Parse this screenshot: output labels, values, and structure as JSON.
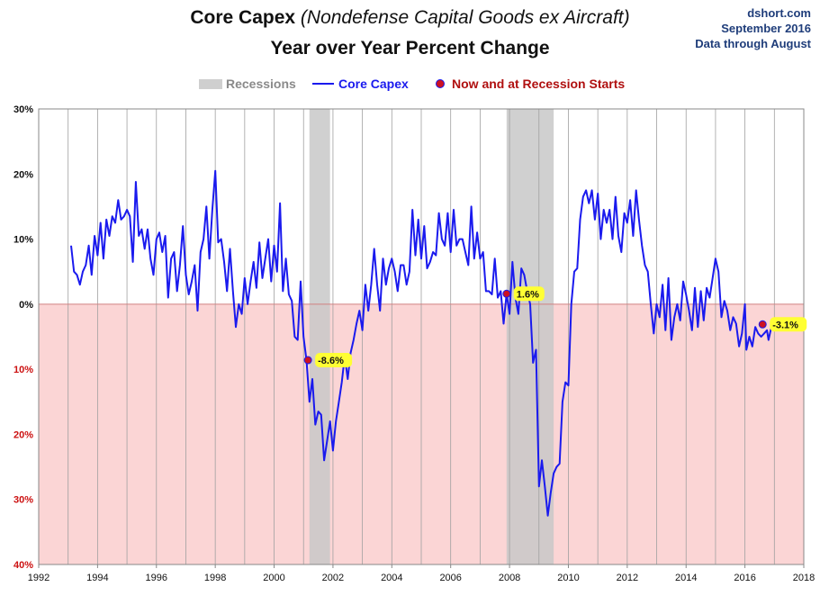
{
  "header": {
    "title_main": "Core Capex",
    "title_paren": "(Nondefense  Capital Goods ex Aircraft)",
    "title_line2": "Year over Year Percent Change",
    "source_site": "dshort.com",
    "source_date": "September 2016",
    "source_note": "Data through August"
  },
  "legend": {
    "recessions": "Recessions",
    "series": "Core Capex",
    "markers": "Now and at Recession Starts"
  },
  "colors": {
    "line": "#1a1aee",
    "recession": "#c8c8c8",
    "negative_band": "#fbd5d5",
    "marker": "#cc1122",
    "label_bg": "#ffff33"
  },
  "chart_data": {
    "type": "line",
    "title": "Core Capex (Nondefense  Capital Goods ex Aircraft) Year over Year Percent Change",
    "xlabel": "",
    "ylabel": "",
    "xlim": [
      1992,
      2018
    ],
    "ylim": [
      -40,
      30
    ],
    "x_ticks": [
      "1992",
      "1994",
      "1996",
      "1998",
      "2000",
      "2002",
      "2004",
      "2006",
      "2008",
      "2010",
      "2012",
      "2014",
      "2016",
      "2018"
    ],
    "y_ticks": [
      {
        "value": 30,
        "label": "30%"
      },
      {
        "value": 20,
        "label": "20%"
      },
      {
        "value": 10,
        "label": "10%"
      },
      {
        "value": 0,
        "label": "0%"
      },
      {
        "value": -10,
        "label": "10%"
      },
      {
        "value": -20,
        "label": "20%"
      },
      {
        "value": -30,
        "label": "30%"
      },
      {
        "value": -40,
        "label": "40%"
      }
    ],
    "grid": "vertical",
    "legend_position": "top-center",
    "recessions": [
      [
        2001.2,
        2001.9
      ],
      [
        2007.9,
        2009.5
      ]
    ],
    "series": [
      {
        "name": "Core Capex",
        "points": [
          [
            1993.1,
            9
          ],
          [
            1993.2,
            5
          ],
          [
            1993.3,
            4.5
          ],
          [
            1993.4,
            3
          ],
          [
            1993.5,
            5
          ],
          [
            1993.6,
            6
          ],
          [
            1993.7,
            9
          ],
          [
            1993.8,
            4.5
          ],
          [
            1993.9,
            10.5
          ],
          [
            1994.0,
            7.5
          ],
          [
            1994.1,
            12.5
          ],
          [
            1994.2,
            7
          ],
          [
            1994.3,
            13
          ],
          [
            1994.4,
            10.5
          ],
          [
            1994.5,
            13.5
          ],
          [
            1994.6,
            12.5
          ],
          [
            1994.7,
            16
          ],
          [
            1994.8,
            13
          ],
          [
            1994.9,
            13.5
          ],
          [
            1995.0,
            14.5
          ],
          [
            1995.1,
            13.5
          ],
          [
            1995.2,
            6.5
          ],
          [
            1995.3,
            18.8
          ],
          [
            1995.4,
            10.5
          ],
          [
            1995.5,
            11.5
          ],
          [
            1995.6,
            8.5
          ],
          [
            1995.7,
            11.5
          ],
          [
            1995.8,
            7
          ],
          [
            1995.9,
            4.5
          ],
          [
            1996.0,
            10
          ],
          [
            1996.1,
            11
          ],
          [
            1996.2,
            8
          ],
          [
            1996.3,
            10.5
          ],
          [
            1996.4,
            1
          ],
          [
            1996.5,
            7
          ],
          [
            1996.6,
            8
          ],
          [
            1996.7,
            2
          ],
          [
            1996.8,
            6
          ],
          [
            1996.9,
            12
          ],
          [
            1997.0,
            4.5
          ],
          [
            1997.1,
            1.5
          ],
          [
            1997.2,
            3.5
          ],
          [
            1997.3,
            6
          ],
          [
            1997.4,
            -1
          ],
          [
            1997.5,
            8
          ],
          [
            1997.6,
            10
          ],
          [
            1997.7,
            15
          ],
          [
            1997.8,
            7
          ],
          [
            1997.9,
            14.5
          ],
          [
            1998.0,
            20.5
          ],
          [
            1998.1,
            9.5
          ],
          [
            1998.2,
            10
          ],
          [
            1998.3,
            6.5
          ],
          [
            1998.4,
            2
          ],
          [
            1998.5,
            8.5
          ],
          [
            1998.6,
            2
          ],
          [
            1998.7,
            -3.5
          ],
          [
            1998.8,
            0
          ],
          [
            1998.9,
            -1.5
          ],
          [
            1999.0,
            4
          ],
          [
            1999.1,
            0
          ],
          [
            1999.2,
            3.5
          ],
          [
            1999.3,
            6.5
          ],
          [
            1999.4,
            2.5
          ],
          [
            1999.5,
            9.5
          ],
          [
            1999.6,
            4
          ],
          [
            1999.7,
            7
          ],
          [
            1999.8,
            10
          ],
          [
            1999.9,
            3.5
          ],
          [
            2000.0,
            9
          ],
          [
            2000.1,
            5
          ],
          [
            2000.2,
            15.5
          ],
          [
            2000.3,
            2
          ],
          [
            2000.4,
            7
          ],
          [
            2000.5,
            1.5
          ],
          [
            2000.6,
            0.5
          ],
          [
            2000.7,
            -5
          ],
          [
            2000.8,
            -5.5
          ],
          [
            2000.9,
            3.5
          ],
          [
            2001.0,
            -5
          ],
          [
            2001.1,
            -8.6
          ],
          [
            2001.2,
            -15
          ],
          [
            2001.3,
            -11.5
          ],
          [
            2001.4,
            -18.5
          ],
          [
            2001.5,
            -16.5
          ],
          [
            2001.6,
            -17
          ],
          [
            2001.7,
            -24
          ],
          [
            2001.8,
            -21
          ],
          [
            2001.9,
            -18
          ],
          [
            2002.0,
            -22.5
          ],
          [
            2002.1,
            -18
          ],
          [
            2002.2,
            -15
          ],
          [
            2002.3,
            -12
          ],
          [
            2002.4,
            -8
          ],
          [
            2002.5,
            -11.5
          ],
          [
            2002.6,
            -7.5
          ],
          [
            2002.7,
            -5.5
          ],
          [
            2002.8,
            -3
          ],
          [
            2002.9,
            -1
          ],
          [
            2003.0,
            -4
          ],
          [
            2003.1,
            3
          ],
          [
            2003.2,
            -1
          ],
          [
            2003.3,
            3
          ],
          [
            2003.4,
            8.5
          ],
          [
            2003.5,
            3
          ],
          [
            2003.6,
            -1
          ],
          [
            2003.7,
            7
          ],
          [
            2003.8,
            3
          ],
          [
            2003.9,
            5.5
          ],
          [
            2004.0,
            7
          ],
          [
            2004.1,
            5
          ],
          [
            2004.2,
            2
          ],
          [
            2004.3,
            6
          ],
          [
            2004.4,
            6
          ],
          [
            2004.5,
            3
          ],
          [
            2004.6,
            5
          ],
          [
            2004.7,
            14.5
          ],
          [
            2004.8,
            7.5
          ],
          [
            2004.9,
            13
          ],
          [
            2005.0,
            7
          ],
          [
            2005.1,
            12
          ],
          [
            2005.2,
            5.5
          ],
          [
            2005.3,
            6.5
          ],
          [
            2005.4,
            8
          ],
          [
            2005.5,
            7.5
          ],
          [
            2005.6,
            14
          ],
          [
            2005.7,
            10
          ],
          [
            2005.8,
            9
          ],
          [
            2005.9,
            14
          ],
          [
            2006.0,
            8
          ],
          [
            2006.1,
            14.5
          ],
          [
            2006.2,
            9
          ],
          [
            2006.3,
            10
          ],
          [
            2006.4,
            10
          ],
          [
            2006.5,
            8
          ],
          [
            2006.6,
            6
          ],
          [
            2006.7,
            15
          ],
          [
            2006.8,
            7
          ],
          [
            2006.9,
            11
          ],
          [
            2007.0,
            7
          ],
          [
            2007.1,
            8
          ],
          [
            2007.2,
            2
          ],
          [
            2007.3,
            2
          ],
          [
            2007.4,
            1.5
          ],
          [
            2007.5,
            7
          ],
          [
            2007.6,
            1
          ],
          [
            2007.7,
            2
          ],
          [
            2007.8,
            -3
          ],
          [
            2007.9,
            1.6
          ],
          [
            2008.0,
            -1.5
          ],
          [
            2008.1,
            6.5
          ],
          [
            2008.2,
            1
          ],
          [
            2008.3,
            -1.5
          ],
          [
            2008.4,
            5.5
          ],
          [
            2008.5,
            4.5
          ],
          [
            2008.6,
            2
          ],
          [
            2008.7,
            0
          ],
          [
            2008.8,
            -9
          ],
          [
            2008.9,
            -7
          ],
          [
            2009.0,
            -28
          ],
          [
            2009.1,
            -24
          ],
          [
            2009.2,
            -28
          ],
          [
            2009.3,
            -32.5
          ],
          [
            2009.4,
            -29
          ],
          [
            2009.5,
            -26
          ],
          [
            2009.6,
            -25
          ],
          [
            2009.7,
            -24.5
          ],
          [
            2009.8,
            -15
          ],
          [
            2009.9,
            -12
          ],
          [
            2010.0,
            -12.5
          ],
          [
            2010.1,
            0
          ],
          [
            2010.2,
            5
          ],
          [
            2010.3,
            5.5
          ],
          [
            2010.4,
            13
          ],
          [
            2010.5,
            16.5
          ],
          [
            2010.6,
            17.5
          ],
          [
            2010.7,
            15.5
          ],
          [
            2010.8,
            17.5
          ],
          [
            2010.9,
            13
          ],
          [
            2011.0,
            17
          ],
          [
            2011.1,
            10
          ],
          [
            2011.2,
            14.5
          ],
          [
            2011.3,
            12.5
          ],
          [
            2011.4,
            14.5
          ],
          [
            2011.5,
            10
          ],
          [
            2011.6,
            16.5
          ],
          [
            2011.7,
            10.5
          ],
          [
            2011.8,
            8
          ],
          [
            2011.9,
            14
          ],
          [
            2012.0,
            12.5
          ],
          [
            2012.1,
            16
          ],
          [
            2012.2,
            10.5
          ],
          [
            2012.3,
            17.5
          ],
          [
            2012.4,
            13
          ],
          [
            2012.5,
            9
          ],
          [
            2012.6,
            6
          ],
          [
            2012.7,
            5
          ],
          [
            2012.8,
            0
          ],
          [
            2012.9,
            -4.5
          ],
          [
            2013.0,
            0
          ],
          [
            2013.1,
            -2
          ],
          [
            2013.2,
            3
          ],
          [
            2013.3,
            -4
          ],
          [
            2013.4,
            4
          ],
          [
            2013.5,
            -5.5
          ],
          [
            2013.6,
            -2
          ],
          [
            2013.7,
            0
          ],
          [
            2013.8,
            -2.5
          ],
          [
            2013.9,
            3.5
          ],
          [
            2014.0,
            1.5
          ],
          [
            2014.1,
            -1
          ],
          [
            2014.2,
            -4
          ],
          [
            2014.3,
            2.5
          ],
          [
            2014.4,
            -3.5
          ],
          [
            2014.5,
            2
          ],
          [
            2014.6,
            -2.5
          ],
          [
            2014.7,
            2.5
          ],
          [
            2014.8,
            1
          ],
          [
            2014.9,
            4
          ],
          [
            2015.0,
            7
          ],
          [
            2015.1,
            5
          ],
          [
            2015.2,
            -2
          ],
          [
            2015.3,
            0.5
          ],
          [
            2015.4,
            -1
          ],
          [
            2015.5,
            -4
          ],
          [
            2015.6,
            -2
          ],
          [
            2015.7,
            -3
          ],
          [
            2015.8,
            -6.5
          ],
          [
            2015.9,
            -4.5
          ],
          [
            2016.0,
            0
          ],
          [
            2016.05,
            -7
          ],
          [
            2016.15,
            -5
          ],
          [
            2016.25,
            -6.5
          ],
          [
            2016.35,
            -3.5
          ],
          [
            2016.45,
            -4.5
          ],
          [
            2016.55,
            -5
          ],
          [
            2016.65,
            -4.5
          ],
          [
            2016.75,
            -4
          ],
          [
            2016.8,
            -5.5
          ],
          [
            2016.9,
            -3.5
          ],
          [
            2017.0,
            -3.1
          ]
        ]
      }
    ],
    "markers": [
      {
        "x": 2001.15,
        "y": -8.6,
        "label": "-8.6%"
      },
      {
        "x": 2007.9,
        "y": 1.6,
        "label": "1.6%"
      },
      {
        "x": 2016.6,
        "y": -3.1,
        "label": "-3.1%"
      }
    ]
  }
}
